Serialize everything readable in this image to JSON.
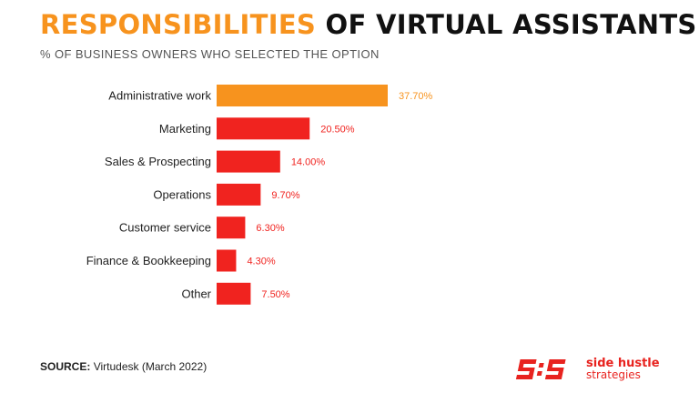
{
  "header": {
    "title_highlight": "RESPONSIBILITIES",
    "title_rest": "OF VIRTUAL ASSISTANTS",
    "subtitle": "% OF BUSINESS OWNERS WHO SELECTED THE OPTION"
  },
  "chart_data": {
    "type": "bar",
    "orientation": "horizontal",
    "categories": [
      "Administrative work",
      "Marketing",
      "Sales & Prospecting",
      "Operations",
      "Customer service",
      "Finance & Bookkeeping",
      "Other"
    ],
    "values": [
      37.7,
      20.5,
      14.0,
      9.7,
      6.3,
      4.3,
      7.5
    ],
    "data_labels": [
      "37.70%",
      "20.50%",
      "14.00%",
      "9.70%",
      "6.30%",
      "4.30%",
      "7.50%"
    ],
    "xlim": [
      0,
      37.7
    ],
    "grid": false,
    "colors": {
      "highlight": "#f7931e",
      "default": "#f0231f"
    }
  },
  "footer": {
    "source_label": "SOURCE:",
    "source_text": "Virtudesk (March 2022)"
  },
  "brand": {
    "line1": "side hustle",
    "line2": "strategies",
    "color": "#e8231f"
  }
}
